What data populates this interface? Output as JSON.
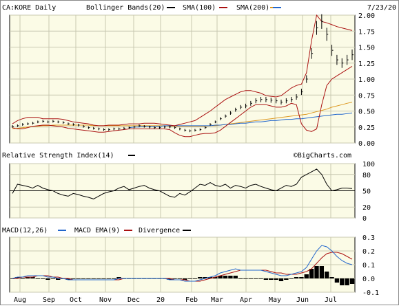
{
  "chart_data": {
    "type": "line",
    "x_labels": [
      "Aug",
      "Sep",
      "Oct",
      "Nov",
      "Dec",
      "20",
      "Feb",
      "Mar",
      "Apr",
      "May",
      "Jun",
      "Jul"
    ],
    "price": {
      "header": "CA:KORE Daily",
      "date": "7/23/20",
      "watermark": "©BigCharts.com",
      "legend": [
        {
          "label": "Bollinger Bands(20)",
          "color": "#000000"
        },
        {
          "label": "SMA(100)",
          "color": "#aa1111"
        },
        {
          "label": "SMA(200)",
          "color": "#dd9922"
        },
        {
          "label": "",
          "color": "#2266cc"
        }
      ],
      "ylim": [
        0,
        2.0
      ],
      "ticks": [
        "2.00",
        "1.75",
        "1.50",
        "1.25",
        "1.00",
        "0.75",
        "0.50",
        "0.25",
        "0.00"
      ],
      "close": [
        0.26,
        0.27,
        0.29,
        0.3,
        0.31,
        0.33,
        0.34,
        0.33,
        0.34,
        0.33,
        0.32,
        0.3,
        0.29,
        0.28,
        0.26,
        0.24,
        0.23,
        0.22,
        0.21,
        0.21,
        0.22,
        0.22,
        0.23,
        0.24,
        0.25,
        0.27,
        0.26,
        0.25,
        0.24,
        0.24,
        0.25,
        0.25,
        0.24,
        0.22,
        0.2,
        0.19,
        0.2,
        0.21,
        0.24,
        0.29,
        0.33,
        0.38,
        0.42,
        0.47,
        0.52,
        0.56,
        0.58,
        0.62,
        0.66,
        0.68,
        0.68,
        0.67,
        0.66,
        0.64,
        0.66,
        0.68,
        0.72,
        0.8,
        1.0,
        1.4,
        1.8,
        1.9,
        1.7,
        1.45,
        1.3,
        1.25,
        1.3,
        1.38
      ],
      "bb_upper": [
        0.3,
        0.35,
        0.38,
        0.4,
        0.4,
        0.4,
        0.38,
        0.38,
        0.38,
        0.38,
        0.37,
        0.35,
        0.33,
        0.32,
        0.31,
        0.3,
        0.28,
        0.27,
        0.27,
        0.28,
        0.28,
        0.28,
        0.29,
        0.3,
        0.3,
        0.3,
        0.31,
        0.31,
        0.31,
        0.3,
        0.29,
        0.28,
        0.27,
        0.29,
        0.31,
        0.33,
        0.35,
        0.4,
        0.45,
        0.5,
        0.56,
        0.62,
        0.68,
        0.72,
        0.76,
        0.8,
        0.82,
        0.82,
        0.8,
        0.78,
        0.74,
        0.73,
        0.72,
        0.74,
        0.8,
        0.86,
        0.9,
        0.92,
        1.1,
        1.6,
        2.0,
        1.9,
        1.88,
        1.85,
        1.82,
        1.8,
        1.78,
        1.76
      ],
      "bb_lower": [
        0.24,
        0.22,
        0.22,
        0.24,
        0.26,
        0.27,
        0.28,
        0.28,
        0.27,
        0.26,
        0.25,
        0.23,
        0.22,
        0.21,
        0.2,
        0.19,
        0.18,
        0.17,
        0.17,
        0.18,
        0.19,
        0.2,
        0.21,
        0.22,
        0.22,
        0.22,
        0.22,
        0.22,
        0.22,
        0.22,
        0.22,
        0.21,
        0.16,
        0.12,
        0.1,
        0.1,
        0.12,
        0.14,
        0.15,
        0.15,
        0.16,
        0.2,
        0.26,
        0.32,
        0.38,
        0.44,
        0.5,
        0.56,
        0.6,
        0.6,
        0.6,
        0.58,
        0.56,
        0.56,
        0.58,
        0.62,
        0.6,
        0.3,
        0.2,
        0.18,
        0.22,
        0.6,
        0.9,
        1.0,
        1.05,
        1.1,
        1.15,
        1.2
      ],
      "sma100": [
        null,
        null,
        null,
        null,
        null,
        null,
        null,
        null,
        null,
        null,
        null,
        null,
        null,
        null,
        null,
        null,
        null,
        null,
        null,
        null,
        null,
        null,
        null,
        0.28,
        0.28,
        0.27,
        0.27,
        0.27,
        0.27,
        0.26,
        0.26,
        0.26,
        0.26,
        0.25,
        0.24,
        0.24,
        0.24,
        0.24,
        0.24,
        0.25,
        0.26,
        0.27,
        0.28,
        0.3,
        0.31,
        0.32,
        0.33,
        0.34,
        0.35,
        0.37,
        0.38,
        0.4,
        0.41,
        0.42,
        0.44,
        0.45,
        0.47,
        0.49,
        0.51,
        0.55,
        0.6,
        0.65,
        0.7,
        0.75,
        0.8,
        0.85,
        0.9,
        0.95
      ],
      "sma200": [
        0.22,
        0.23,
        0.24,
        0.25,
        0.26,
        0.26,
        0.27,
        0.27,
        0.28,
        0.28,
        0.28,
        0.28,
        0.28,
        0.28,
        0.28,
        0.28,
        0.27,
        0.27,
        0.27,
        0.27,
        0.27,
        0.27,
        0.27,
        0.27,
        0.27,
        0.27,
        0.27,
        0.27,
        0.27,
        0.27,
        0.27,
        0.26,
        0.26,
        0.26,
        0.26,
        0.26,
        0.26,
        0.26,
        0.26,
        0.27,
        0.27,
        0.28,
        0.29,
        0.3,
        0.31,
        0.32,
        0.33,
        0.34,
        0.35,
        0.36,
        0.37,
        0.38,
        0.39,
        0.4,
        0.41,
        0.42,
        0.43,
        0.44,
        0.45,
        0.47,
        0.49,
        0.51,
        0.53,
        0.56,
        0.58,
        0.6,
        0.62,
        0.64
      ],
      "sma_blue": [
        null,
        null,
        null,
        null,
        null,
        null,
        null,
        null,
        null,
        null,
        null,
        null,
        null,
        null,
        null,
        null,
        null,
        null,
        null,
        null,
        null,
        null,
        null,
        0.24,
        0.25,
        0.25,
        0.26,
        0.26,
        0.26,
        0.26,
        0.27,
        0.27,
        0.27,
        0.27,
        0.27,
        0.27,
        0.27,
        0.27,
        0.27,
        0.27,
        0.28,
        0.28,
        0.29,
        0.29,
        0.3,
        0.31,
        0.31,
        0.32,
        0.33,
        0.33,
        0.34,
        0.35,
        0.35,
        0.36,
        0.37,
        0.37,
        0.38,
        0.38,
        0.39,
        0.4,
        0.41,
        0.42,
        0.43,
        0.44,
        0.45,
        0.45,
        0.46,
        0.47
      ]
    },
    "rsi": {
      "label": "Relative Strength Index(14)",
      "color": "#000000",
      "ylim": [
        0,
        100
      ],
      "ticks": [
        "100",
        "80",
        "50",
        "20",
        "0"
      ],
      "reference": 50,
      "values": [
        45,
        62,
        60,
        58,
        55,
        60,
        55,
        52,
        50,
        45,
        42,
        40,
        45,
        43,
        40,
        38,
        35,
        40,
        45,
        48,
        50,
        55,
        58,
        52,
        55,
        58,
        60,
        55,
        52,
        50,
        45,
        40,
        38,
        45,
        42,
        48,
        55,
        62,
        60,
        65,
        60,
        58,
        62,
        55,
        60,
        58,
        55,
        60,
        62,
        58,
        55,
        52,
        50,
        55,
        60,
        58,
        62,
        75,
        80,
        85,
        90,
        80,
        62,
        50,
        52,
        55,
        55,
        54
      ]
    },
    "macd": {
      "legend": [
        {
          "label": "MACD(12,26)",
          "color": "#000000"
        },
        {
          "label": "MACD EMA(9)",
          "color": "#2266cc"
        },
        {
          "label": "Divergence",
          "color": "#000000"
        }
      ],
      "ylim": [
        -0.1,
        0.3
      ],
      "ticks": [
        "0.3",
        "0.2",
        "0.1",
        "0.0",
        "-0.1"
      ],
      "macd": [
        0.0,
        0.01,
        0.01,
        0.02,
        0.02,
        0.02,
        0.02,
        0.01,
        0.01,
        0.0,
        0.0,
        -0.01,
        -0.01,
        -0.01,
        -0.01,
        -0.01,
        -0.01,
        -0.01,
        -0.01,
        -0.01,
        -0.01,
        0.0,
        0.0,
        0.0,
        0.0,
        0.0,
        0.0,
        0.0,
        0.0,
        0.0,
        0.0,
        -0.01,
        -0.01,
        -0.01,
        -0.02,
        -0.02,
        -0.02,
        -0.01,
        0.0,
        0.01,
        0.02,
        0.04,
        0.05,
        0.06,
        0.07,
        0.06,
        0.06,
        0.06,
        0.06,
        0.06,
        0.05,
        0.04,
        0.03,
        0.02,
        0.02,
        0.03,
        0.04,
        0.05,
        0.08,
        0.14,
        0.2,
        0.24,
        0.23,
        0.2,
        0.16,
        0.13,
        0.11,
        0.1
      ],
      "signal": [
        0.0,
        0.0,
        0.01,
        0.01,
        0.01,
        0.02,
        0.02,
        0.02,
        0.01,
        0.01,
        0.0,
        0.0,
        -0.01,
        -0.01,
        -0.01,
        -0.01,
        -0.01,
        -0.01,
        -0.01,
        -0.01,
        -0.01,
        -0.01,
        0.0,
        0.0,
        0.0,
        0.0,
        0.0,
        0.0,
        0.0,
        0.0,
        0.0,
        0.0,
        -0.01,
        -0.01,
        -0.01,
        -0.02,
        -0.02,
        -0.02,
        -0.01,
        0.0,
        0.01,
        0.02,
        0.03,
        0.04,
        0.05,
        0.06,
        0.06,
        0.06,
        0.06,
        0.06,
        0.06,
        0.05,
        0.04,
        0.04,
        0.03,
        0.03,
        0.03,
        0.04,
        0.05,
        0.07,
        0.11,
        0.15,
        0.18,
        0.19,
        0.19,
        0.18,
        0.16,
        0.14
      ],
      "divergence": [
        0.0,
        0.01,
        0.0,
        0.01,
        0.01,
        0.0,
        0.0,
        -0.01,
        0.0,
        -0.01,
        0.0,
        -0.01,
        0.0,
        0.0,
        0.0,
        0.0,
        0.0,
        0.0,
        0.0,
        0.0,
        0.0,
        0.01,
        0.0,
        0.0,
        0.0,
        0.0,
        0.0,
        0.0,
        0.0,
        0.0,
        0.0,
        -0.01,
        0.0,
        0.0,
        -0.01,
        0.0,
        0.0,
        0.01,
        0.01,
        0.01,
        0.01,
        0.02,
        0.02,
        0.02,
        0.02,
        0.0,
        0.0,
        0.0,
        0.0,
        0.0,
        -0.01,
        -0.01,
        -0.01,
        -0.02,
        -0.01,
        0.0,
        0.01,
        0.01,
        0.03,
        0.07,
        0.09,
        0.09,
        0.05,
        0.01,
        -0.03,
        -0.05,
        -0.05,
        -0.04
      ]
    }
  }
}
